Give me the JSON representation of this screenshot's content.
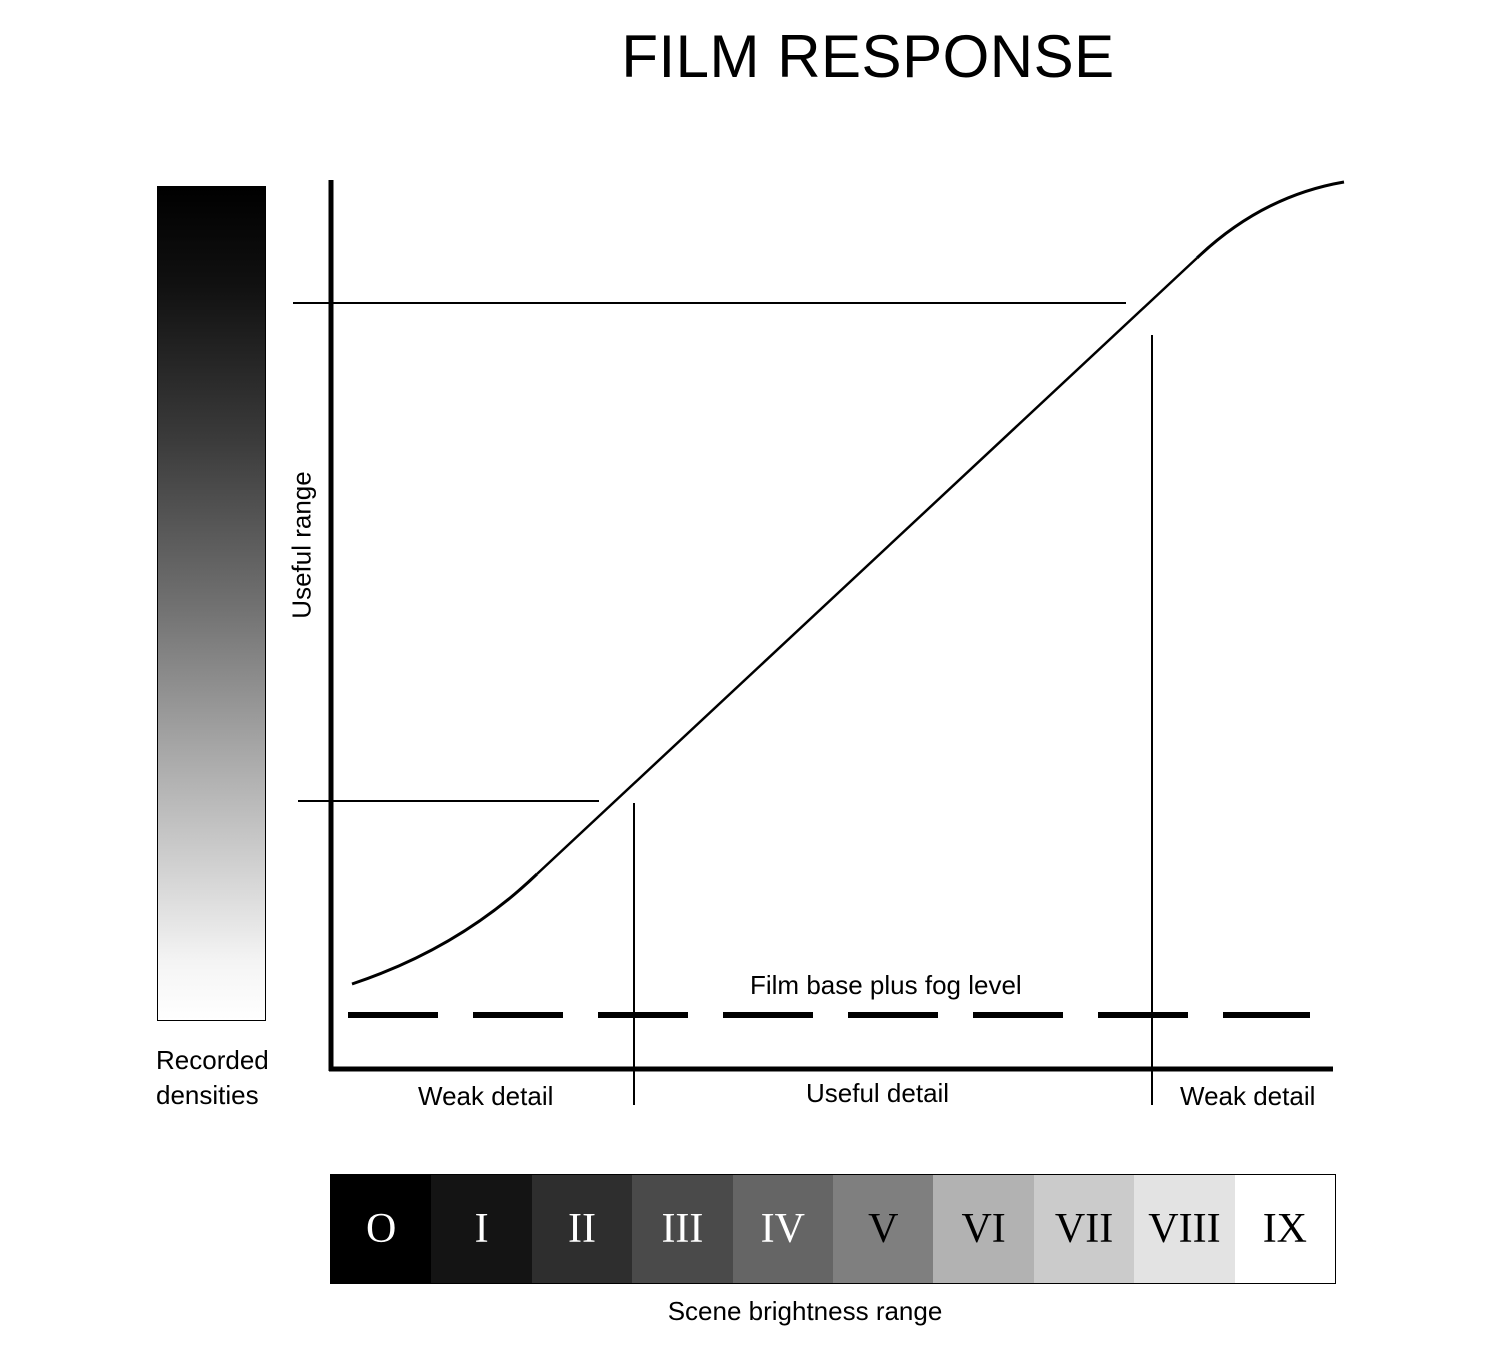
{
  "title": "FILM RESPONSE",
  "density_label": [
    "Recorded",
    "densities"
  ],
  "y_axis_label": "Useful range",
  "fog_label": "Film base plus fog level",
  "detail_labels": {
    "left": "Weak detail",
    "middle": "Useful detail",
    "right": "Weak detail"
  },
  "zones": [
    {
      "label": "O",
      "bg": "#000000",
      "fg": "#ffffff"
    },
    {
      "label": "I",
      "bg": "#141414",
      "fg": "#ffffff"
    },
    {
      "label": "II",
      "bg": "#2e2e2e",
      "fg": "#ffffff"
    },
    {
      "label": "III",
      "bg": "#4a4a4a",
      "fg": "#ffffff"
    },
    {
      "label": "IV",
      "bg": "#656565",
      "fg": "#ffffff"
    },
    {
      "label": "V",
      "bg": "#7f7f7f",
      "fg": "#000000"
    },
    {
      "label": "VI",
      "bg": "#b2b2b2",
      "fg": "#000000"
    },
    {
      "label": "VII",
      "bg": "#cbcbcb",
      "fg": "#000000"
    },
    {
      "label": "VIII",
      "bg": "#e3e3e3",
      "fg": "#000000"
    },
    {
      "label": "IX",
      "bg": "#ffffff",
      "fg": "#000000"
    }
  ],
  "scale_label": "Scene brightness range"
}
